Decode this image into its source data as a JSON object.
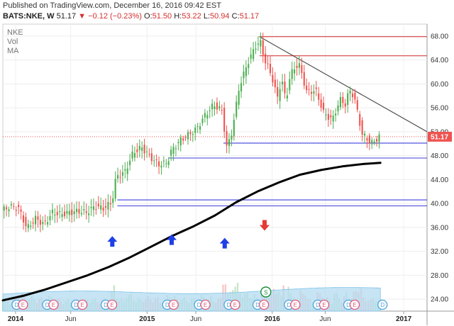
{
  "header": {
    "published": "Published on TradingView.com, December 16, 2016 09:42 EST",
    "symbol": "BATS:NKE, W",
    "last": "51.17",
    "change": "▼ −0.12 (−0.23%)",
    "open_label": "O:",
    "open": "51.50",
    "high_label": "H:",
    "high": "53.22",
    "low_label": "L:",
    "low": "50.94",
    "close_label": "C:",
    "close": "51.17"
  },
  "overlay_labels": [
    "NKE",
    "Vol",
    "MA"
  ],
  "colors": {
    "up": "#4caf50",
    "down": "#ef5350",
    "ma": "#000000",
    "horizontal_blue": "#3f3fdc",
    "horizontal_red": "#d84040",
    "trendline": "#444444",
    "arrow_up": "#1e40e6",
    "arrow_down": "#e53935",
    "last_price_bg": "#ef5350",
    "vol_up": "#c8e6c9",
    "vol_down": "#f8c8c8",
    "vol_ma_fill": "#b3dbf0",
    "event_blue": "#4aa3df",
    "event_red": "#e05a7a",
    "split_green": "#1b8e3a"
  },
  "chart_data": {
    "type": "candlestick",
    "title": "",
    "symbol": "BATS:NKE",
    "interval": "W",
    "ylim": [
      22,
      70
    ],
    "y_ticks": [
      "24.00",
      "28.00",
      "32.00",
      "36.00",
      "40.00",
      "44.00",
      "48.00",
      "52.00",
      "56.00",
      "60.00",
      "64.00",
      "68.00"
    ],
    "x_ticks": [
      {
        "label": "2014",
        "bold": true,
        "t": 0.03
      },
      {
        "label": "Jun",
        "bold": false,
        "t": 0.16
      },
      {
        "label": "2015",
        "bold": true,
        "t": 0.34
      },
      {
        "label": "Jun",
        "bold": false,
        "t": 0.455
      },
      {
        "label": "2016",
        "bold": true,
        "t": 0.635
      },
      {
        "label": "Jun",
        "bold": false,
        "t": 0.76
      },
      {
        "label": "2017",
        "bold": true,
        "t": 0.945
      }
    ],
    "last_price": 51.17,
    "ohlc": {
      "open": 51.5,
      "high": 53.22,
      "low": 50.94,
      "close": 51.17
    },
    "price_path": [
      [
        0.0,
        38.8
      ],
      [
        0.02,
        39.5
      ],
      [
        0.04,
        39.2
      ],
      [
        0.06,
        35.8
      ],
      [
        0.08,
        37.5
      ],
      [
        0.1,
        36.5
      ],
      [
        0.12,
        38.5
      ],
      [
        0.14,
        38.2
      ],
      [
        0.16,
        38.5
      ],
      [
        0.18,
        38.7
      ],
      [
        0.2,
        38.5
      ],
      [
        0.22,
        39.5
      ],
      [
        0.24,
        39.2
      ],
      [
        0.26,
        40.2
      ],
      [
        0.27,
        44.5
      ],
      [
        0.29,
        45.2
      ],
      [
        0.31,
        48.5
      ],
      [
        0.33,
        49.4
      ],
      [
        0.35,
        47.8
      ],
      [
        0.37,
        46.5
      ],
      [
        0.39,
        46.8
      ],
      [
        0.4,
        48.8
      ],
      [
        0.42,
        50.5
      ],
      [
        0.44,
        51.5
      ],
      [
        0.46,
        52.5
      ],
      [
        0.48,
        54.8
      ],
      [
        0.5,
        56.5
      ],
      [
        0.52,
        55.5
      ],
      [
        0.53,
        49.4
      ],
      [
        0.54,
        51.0
      ],
      [
        0.55,
        55.0
      ],
      [
        0.56,
        59.5
      ],
      [
        0.58,
        63.5
      ],
      [
        0.6,
        66.5
      ],
      [
        0.61,
        67.0
      ],
      [
        0.62,
        64.0
      ],
      [
        0.63,
        62.5
      ],
      [
        0.64,
        60.5
      ],
      [
        0.65,
        57.5
      ],
      [
        0.66,
        61.0
      ],
      [
        0.67,
        57.0
      ],
      [
        0.68,
        61.5
      ],
      [
        0.7,
        63.5
      ],
      [
        0.71,
        61.0
      ],
      [
        0.72,
        58.5
      ],
      [
        0.74,
        59.0
      ],
      [
        0.76,
        55.0
      ],
      [
        0.78,
        54.0
      ],
      [
        0.79,
        56.0
      ],
      [
        0.8,
        57.5
      ],
      [
        0.81,
        56.5
      ],
      [
        0.82,
        59.0
      ],
      [
        0.83,
        58.0
      ],
      [
        0.84,
        55.0
      ],
      [
        0.85,
        51.5
      ],
      [
        0.86,
        51.0
      ],
      [
        0.87,
        50.0
      ],
      [
        0.88,
        50.5
      ],
      [
        0.89,
        51.2
      ]
    ],
    "moving_average": [
      [
        0.0,
        23.8
      ],
      [
        0.05,
        24.6
      ],
      [
        0.1,
        25.6
      ],
      [
        0.15,
        26.8
      ],
      [
        0.2,
        28.0
      ],
      [
        0.25,
        29.4
      ],
      [
        0.3,
        31.0
      ],
      [
        0.35,
        32.8
      ],
      [
        0.4,
        34.6
      ],
      [
        0.45,
        36.2
      ],
      [
        0.5,
        38.0
      ],
      [
        0.55,
        40.2
      ],
      [
        0.6,
        42.0
      ],
      [
        0.65,
        43.5
      ],
      [
        0.7,
        44.8
      ],
      [
        0.75,
        45.6
      ],
      [
        0.8,
        46.2
      ],
      [
        0.85,
        46.6
      ],
      [
        0.89,
        46.8
      ]
    ],
    "horizontal_lines": [
      {
        "price": 67.9,
        "t0": 0.605,
        "t1": 1.0,
        "color": "red"
      },
      {
        "price": 64.7,
        "t0": 0.605,
        "t1": 1.0,
        "color": "red"
      },
      {
        "price": 50.1,
        "t0": 0.52,
        "t1": 1.0,
        "color": "blue"
      },
      {
        "price": 47.6,
        "t0": 0.39,
        "t1": 1.0,
        "color": "blue"
      },
      {
        "price": 40.6,
        "t0": 0.27,
        "t1": 1.0,
        "color": "blue"
      },
      {
        "price": 39.6,
        "t0": 0.27,
        "t1": 1.0,
        "color": "blue"
      }
    ],
    "trendline": {
      "p0": [
        0.605,
        67.9
      ],
      "p1": [
        1.0,
        52.0
      ]
    },
    "arrows": [
      {
        "t": 0.258,
        "price": 33.6,
        "dir": "up"
      },
      {
        "t": 0.398,
        "price": 33.9,
        "dir": "up"
      },
      {
        "t": 0.523,
        "price": 33.3,
        "dir": "up"
      },
      {
        "t": 0.617,
        "price": 36.4,
        "dir": "down"
      }
    ],
    "events": [
      {
        "t": 0.04,
        "kinds": [
          "D",
          "E"
        ]
      },
      {
        "t": 0.112,
        "kinds": [
          "D",
          "E"
        ]
      },
      {
        "t": 0.18,
        "kinds": [
          "D",
          "E"
        ]
      },
      {
        "t": 0.25,
        "kinds": [
          "D",
          "E"
        ]
      },
      {
        "t": 0.395,
        "kinds": [
          "D",
          "E"
        ]
      },
      {
        "t": 0.47,
        "kinds": [
          "D",
          "E"
        ]
      },
      {
        "t": 0.54,
        "kinds": [
          "D",
          "E"
        ]
      },
      {
        "t": 0.608,
        "kinds": [
          "D",
          "E"
        ]
      },
      {
        "t": 0.682,
        "kinds": [
          "D",
          "E"
        ]
      },
      {
        "t": 0.75,
        "kinds": [
          "D",
          "E"
        ]
      },
      {
        "t": 0.822,
        "kinds": [
          "D",
          "E"
        ]
      },
      {
        "t": 0.895,
        "kinds": [
          "D"
        ]
      }
    ],
    "split_event": {
      "t": 0.62,
      "label": "S"
    }
  }
}
